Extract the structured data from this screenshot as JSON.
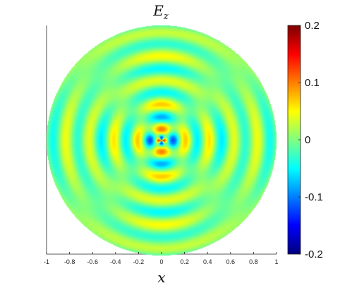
{
  "chart_data": {
    "type": "heatmap",
    "title": "E",
    "title_subscript": "z",
    "xlabel": "x",
    "ylabel": "",
    "xlim": [
      -1,
      1
    ],
    "x_ticks": [
      "-1",
      "-0.8",
      "-0.6",
      "-0.4",
      "-0.2",
      "0",
      "0.2",
      "0.4",
      "0.6",
      "0.8",
      "1"
    ],
    "domain": "disk of radius 1 centered at (0, 0)",
    "pattern": "quadrupole field Ez ≈ A·cos(k·r)·cos(2θ)·r^(-1/2); lobes along x and y axes, nodes along diagonals",
    "wavenumber_k": 30,
    "colormap": "jet",
    "colorbar": {
      "range": [
        -0.2,
        0.2
      ],
      "tick_values": [
        0.2,
        0.1,
        0,
        -0.1,
        -0.2
      ],
      "tick_labels": [
        "0.2",
        "0.1",
        "0",
        "-0.1",
        "-0.2"
      ],
      "placement": "right"
    },
    "grid": false
  }
}
